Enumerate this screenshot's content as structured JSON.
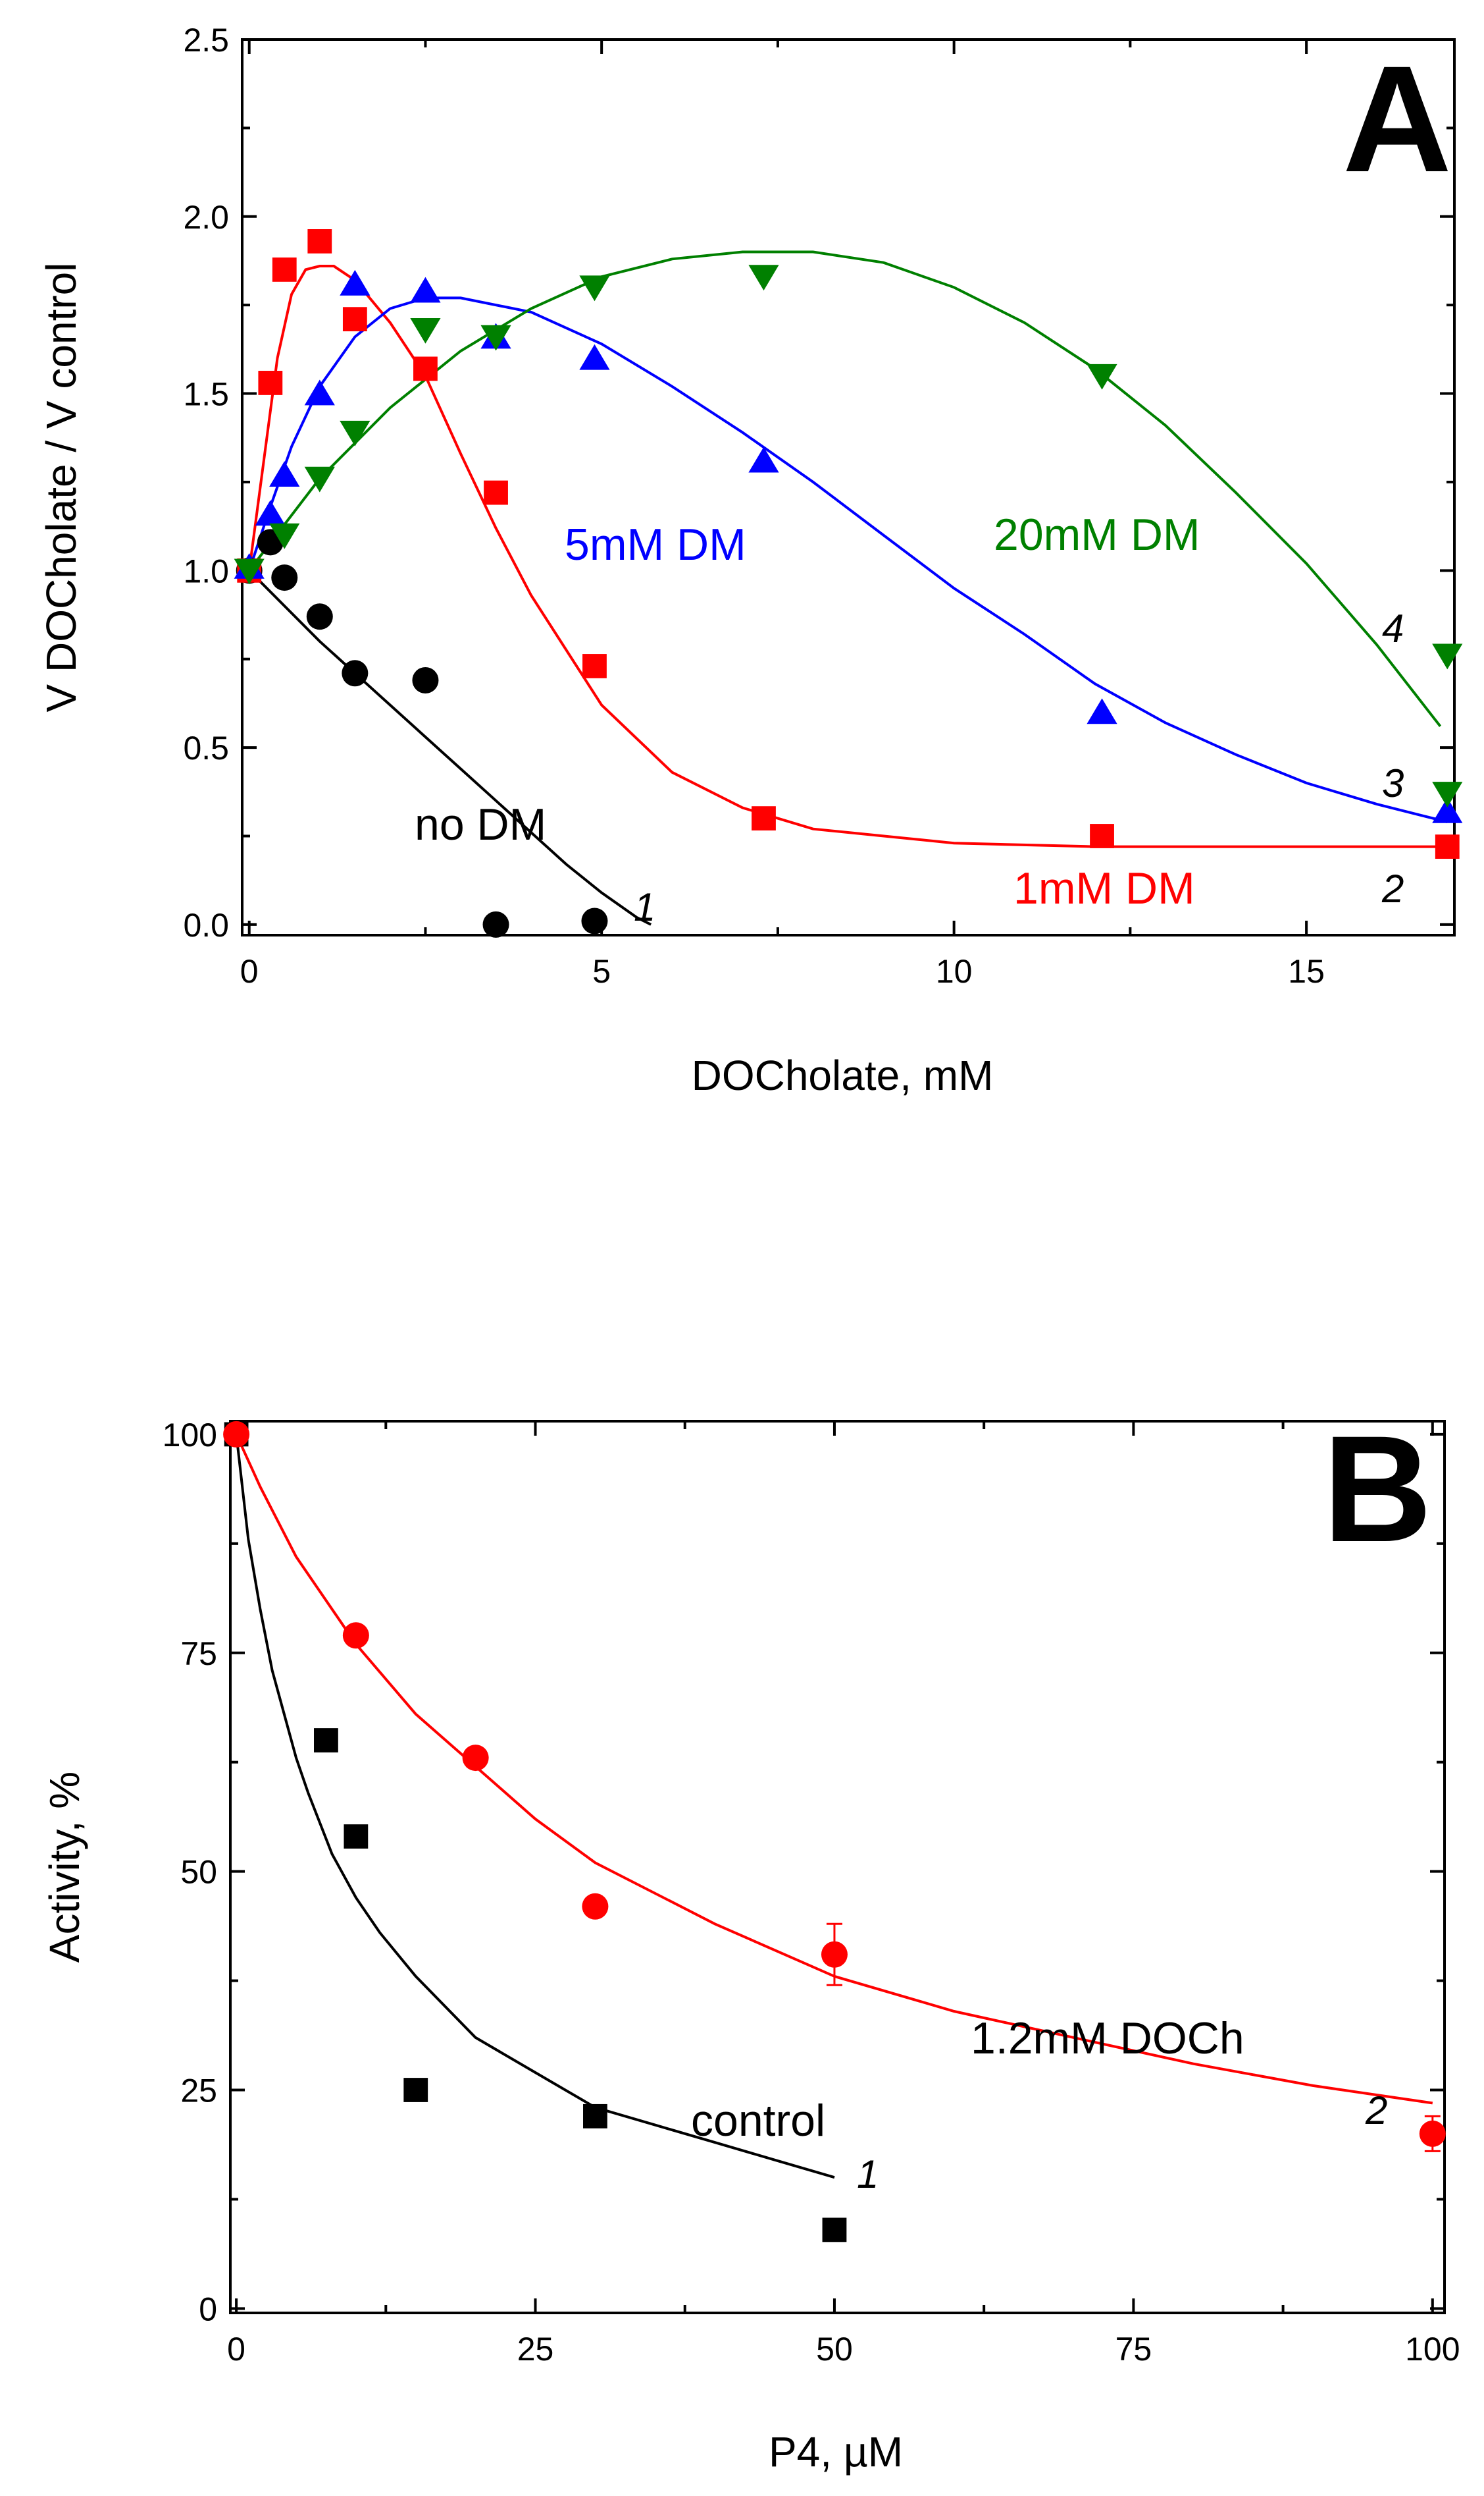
{
  "chart_data": [
    {
      "type": "scatter",
      "panel": "A",
      "xlabel": "DOCholate, mM",
      "ylabel": "V  DOCholate / V control",
      "xlim": [
        0,
        17
      ],
      "ylim": [
        0,
        2.5
      ],
      "xticks": [
        0,
        5,
        10,
        15
      ],
      "yticks": [
        0.0,
        0.5,
        1.0,
        1.5,
        2.0,
        2.5
      ],
      "xtick_labels": [
        "0",
        "5",
        "10",
        "15"
      ],
      "ytick_labels": [
        "0.0",
        "0.5",
        "1.0",
        "1.5",
        "2.0",
        "2.5"
      ],
      "grid": false,
      "series": [
        {
          "label": "no DM",
          "number": "1",
          "color": "#000000",
          "marker": "circle",
          "x": [
            0.0,
            0.3,
            0.5,
            1.0,
            1.5,
            2.5,
            3.5,
            4.9
          ],
          "y": [
            1.0,
            1.08,
            0.98,
            0.87,
            0.71,
            0.69,
            0.0,
            0.01
          ],
          "fit_x": [
            0,
            0.5,
            1,
            1.5,
            2,
            2.5,
            3,
            3.5,
            4,
            4.5,
            5,
            5.5,
            5.7
          ],
          "fit_y": [
            1.0,
            0.9,
            0.8,
            0.71,
            0.62,
            0.53,
            0.44,
            0.35,
            0.26,
            0.17,
            0.09,
            0.02,
            0.0
          ]
        },
        {
          "label": "1mM DM",
          "number": "2",
          "color": "#ff0000",
          "marker": "square",
          "x": [
            0.0,
            0.3,
            0.5,
            1.0,
            1.5,
            2.5,
            3.5,
            4.9,
            7.3,
            12.1,
            17.0
          ],
          "y": [
            1.0,
            1.53,
            1.85,
            1.93,
            1.71,
            1.57,
            1.22,
            0.73,
            0.3,
            0.25,
            0.22
          ],
          "fit_x": [
            0,
            0.2,
            0.4,
            0.6,
            0.8,
            1.0,
            1.2,
            1.5,
            2.0,
            2.5,
            3.0,
            3.5,
            4.0,
            5.0,
            6.0,
            7.0,
            8.0,
            10.0,
            12.0,
            14.0,
            17.0
          ],
          "fit_y": [
            1.0,
            1.3,
            1.6,
            1.78,
            1.85,
            1.86,
            1.86,
            1.82,
            1.7,
            1.55,
            1.33,
            1.12,
            0.93,
            0.62,
            0.43,
            0.33,
            0.27,
            0.23,
            0.22,
            0.22,
            0.22
          ]
        },
        {
          "label": "5mM DM",
          "number": "3",
          "color": "#0000ff",
          "marker": "triangle-up",
          "x": [
            0.0,
            0.3,
            0.5,
            1.0,
            1.5,
            2.5,
            3.5,
            4.9,
            7.3,
            12.1,
            17.0
          ],
          "y": [
            1.01,
            1.16,
            1.27,
            1.5,
            1.81,
            1.79,
            1.66,
            1.6,
            1.31,
            0.6,
            0.32
          ],
          "fit_x": [
            0,
            0.3,
            0.6,
            1.0,
            1.5,
            2.0,
            2.5,
            3.0,
            4.0,
            5.0,
            6.0,
            7.0,
            8.0,
            9.0,
            10.0,
            11.0,
            12.0,
            13.0,
            14.0,
            15.0,
            16.0,
            17.0
          ],
          "fit_y": [
            1.0,
            1.18,
            1.35,
            1.52,
            1.66,
            1.74,
            1.77,
            1.77,
            1.73,
            1.64,
            1.52,
            1.39,
            1.25,
            1.1,
            0.95,
            0.82,
            0.68,
            0.57,
            0.48,
            0.4,
            0.34,
            0.29
          ]
        },
        {
          "label": "20mM DM",
          "number": "4",
          "color": "#008000",
          "marker": "triangle-down",
          "x": [
            0.0,
            0.5,
            1.0,
            1.5,
            2.5,
            3.5,
            4.9,
            7.3,
            12.1,
            17.0,
            17.0
          ],
          "y": [
            1.0,
            1.1,
            1.26,
            1.39,
            1.68,
            1.66,
            1.8,
            1.83,
            1.55,
            0.76,
            0.37
          ],
          "fit_x": [
            0,
            1,
            2,
            3,
            4,
            5,
            6,
            7,
            8,
            9,
            10,
            11,
            12,
            13,
            14,
            15,
            16,
            16.9
          ],
          "fit_y": [
            1.0,
            1.26,
            1.46,
            1.62,
            1.74,
            1.83,
            1.88,
            1.9,
            1.9,
            1.87,
            1.8,
            1.7,
            1.57,
            1.41,
            1.22,
            1.02,
            0.79,
            0.56
          ]
        }
      ],
      "annotations": [
        {
          "text": "A",
          "role": "panel-letter"
        },
        {
          "text": "no DM",
          "color": "#000000"
        },
        {
          "text": "1mM DM",
          "color": "#ff0000"
        },
        {
          "text": "5mM DM",
          "color": "#0000ff"
        },
        {
          "text": "20mM DM",
          "color": "#008000"
        }
      ]
    },
    {
      "type": "scatter",
      "panel": "B",
      "xlabel": "P4, µM",
      "ylabel": "Activity, %",
      "xlim": [
        0,
        100
      ],
      "ylim": [
        0,
        100
      ],
      "xticks": [
        0,
        25,
        50,
        75,
        100
      ],
      "yticks": [
        0,
        25,
        50,
        75,
        100
      ],
      "xtick_labels": [
        "0",
        "25",
        "50",
        "75",
        "100"
      ],
      "ytick_labels": [
        "0",
        "25",
        "50",
        "75",
        "100"
      ],
      "grid": false,
      "series": [
        {
          "label": "control",
          "number": "1",
          "color": "#000000",
          "marker": "square",
          "x": [
            0,
            7.5,
            10,
            15,
            30,
            50
          ],
          "y": [
            100,
            65,
            54,
            25,
            22,
            9
          ],
          "fit_x": [
            0,
            1,
            2,
            3,
            4,
            5,
            6,
            8,
            10,
            12,
            15,
            20,
            25,
            30,
            35,
            40,
            45,
            50
          ],
          "fit_y": [
            100,
            88,
            80,
            73,
            68,
            63,
            59,
            52,
            47,
            43,
            38,
            31,
            27,
            23,
            21,
            19,
            17,
            15
          ]
        },
        {
          "label": "1.2mM DOCh",
          "number": "2",
          "color": "#ff0000",
          "marker": "circle",
          "x": [
            0,
            10,
            20,
            30,
            50,
            100
          ],
          "y": [
            100,
            77,
            63,
            46,
            40.5,
            20
          ],
          "err": [
            0,
            0,
            0,
            0,
            3.5,
            2
          ],
          "fit_x": [
            0,
            2,
            5,
            10,
            15,
            20,
            25,
            30,
            40,
            50,
            60,
            70,
            80,
            90,
            100
          ],
          "fit_y": [
            100,
            94,
            86,
            76,
            68,
            62,
            56,
            51,
            44,
            38,
            34,
            31,
            28,
            25.5,
            23.5
          ]
        }
      ],
      "annotations": [
        {
          "text": "B",
          "role": "panel-letter"
        },
        {
          "text": "control",
          "color": "#000000"
        },
        {
          "text": "1.2mM DOCh",
          "color": "#000000"
        }
      ]
    }
  ]
}
